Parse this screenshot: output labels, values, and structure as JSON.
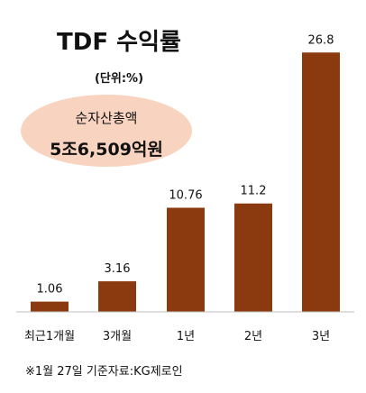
{
  "chart_data": {
    "type": "bar",
    "title": "TDF 수익률",
    "unit": "(단위:%)",
    "categories": [
      "최근1개월",
      "3개월",
      "1년",
      "2년",
      "3년"
    ],
    "values": [
      1.06,
      3.16,
      10.76,
      11.2,
      26.8
    ],
    "value_labels": [
      "1.06",
      "3.16",
      "10.76",
      "11.2",
      "26.8"
    ],
    "ylim": [
      0,
      28.5
    ],
    "grid": false,
    "legend": "none",
    "bar_color": "#8B3A0F"
  },
  "callout": {
    "label": "순자산총액",
    "value": "5조6,509억원",
    "fill_color": "#F8D3BF"
  },
  "source": "※1월 27일 기준자료:KG제로인",
  "colors": {
    "axis": "#BFBFBF"
  }
}
